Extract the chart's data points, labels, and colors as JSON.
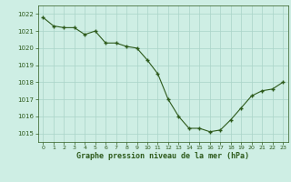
{
  "x": [
    0,
    1,
    2,
    3,
    4,
    5,
    6,
    7,
    8,
    9,
    10,
    11,
    12,
    13,
    14,
    15,
    16,
    17,
    18,
    19,
    20,
    21,
    22,
    23
  ],
  "y": [
    1021.8,
    1021.3,
    1021.2,
    1021.2,
    1020.8,
    1021.0,
    1020.3,
    1020.3,
    1020.1,
    1020.0,
    1019.3,
    1018.5,
    1017.0,
    1016.0,
    1015.3,
    1015.3,
    1015.1,
    1015.2,
    1015.8,
    1016.5,
    1017.2,
    1017.5,
    1017.6,
    1018.0
  ],
  "ylim": [
    1014.5,
    1022.5
  ],
  "yticks": [
    1015,
    1016,
    1017,
    1018,
    1019,
    1020,
    1021,
    1022
  ],
  "xticks": [
    0,
    1,
    2,
    3,
    4,
    5,
    6,
    7,
    8,
    9,
    10,
    11,
    12,
    13,
    14,
    15,
    16,
    17,
    18,
    19,
    20,
    21,
    22,
    23
  ],
  "line_color": "#2d5a1b",
  "marker_color": "#2d5a1b",
  "bg_color": "#ceeee4",
  "grid_color": "#aad4c8",
  "xlabel": "Graphe pression niveau de la mer (hPa)",
  "xlabel_color": "#2d5a1b",
  "tick_color": "#2d5a1b"
}
